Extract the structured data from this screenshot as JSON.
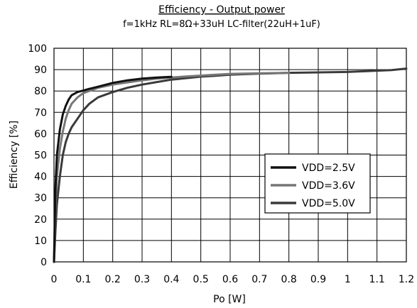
{
  "chart_data": {
    "type": "line",
    "title": "Efficiency - Output power",
    "subtitle": "f=1kHz RL=8Ω+33uH  LC-filter(22uH+1uF)",
    "xlabel": "Po [W]",
    "ylabel": "Efficiency [%]",
    "xlim": [
      0,
      1.2
    ],
    "ylim": [
      0,
      100
    ],
    "x_ticks": [
      "0",
      "0.1",
      "0.2",
      "0.3",
      "0.4",
      "0.5",
      "0.6",
      "0.7",
      "0.8",
      "0.9",
      "1",
      "1.1",
      "1.2"
    ],
    "y_ticks": [
      "0",
      "10",
      "20",
      "30",
      "40",
      "50",
      "60",
      "70",
      "80",
      "90",
      "100"
    ],
    "grid": true,
    "legend_position": "center-right",
    "series": [
      {
        "name": "VDD=2.5V",
        "color": "#111111",
        "x": [
          0,
          0.005,
          0.01,
          0.02,
          0.03,
          0.04,
          0.05,
          0.06,
          0.08,
          0.1,
          0.12,
          0.15,
          0.2,
          0.25,
          0.3,
          0.35,
          0.38,
          0.4
        ],
        "y": [
          0,
          35,
          50,
          62,
          69,
          73,
          76,
          78,
          79.5,
          80.2,
          81,
          82,
          83.8,
          85,
          85.8,
          86.3,
          86.5,
          86.6
        ]
      },
      {
        "name": "VDD=3.6V",
        "color": "#777777",
        "x": [
          0,
          0.005,
          0.01,
          0.02,
          0.03,
          0.04,
          0.05,
          0.06,
          0.08,
          0.1,
          0.12,
          0.15,
          0.2,
          0.25,
          0.3,
          0.35,
          0.4,
          0.45,
          0.5,
          0.55,
          0.6,
          0.7,
          0.8
        ],
        "y": [
          0,
          26,
          40,
          53,
          61,
          67,
          71,
          74,
          77,
          79,
          80,
          81.5,
          83,
          84,
          85,
          85.8,
          86.3,
          86.8,
          87.2,
          87.6,
          88,
          88.3,
          88.5
        ]
      },
      {
        "name": "VDD=5.0V",
        "color": "#3a3a3a",
        "x": [
          0,
          0.005,
          0.01,
          0.02,
          0.03,
          0.04,
          0.05,
          0.06,
          0.08,
          0.1,
          0.12,
          0.15,
          0.2,
          0.25,
          0.3,
          0.35,
          0.4,
          0.45,
          0.5,
          0.55,
          0.6,
          0.7,
          0.8,
          0.9,
          1.0,
          1.05,
          1.1,
          1.15,
          1.2
        ],
        "y": [
          0,
          15,
          27,
          40,
          50,
          56,
          60,
          63,
          67,
          71,
          74,
          77,
          79.5,
          81.5,
          83,
          84.2,
          85.3,
          86,
          86.7,
          87.1,
          87.6,
          88.1,
          88.5,
          88.7,
          88.9,
          89.2,
          89.5,
          89.8,
          90.5
        ]
      }
    ]
  }
}
